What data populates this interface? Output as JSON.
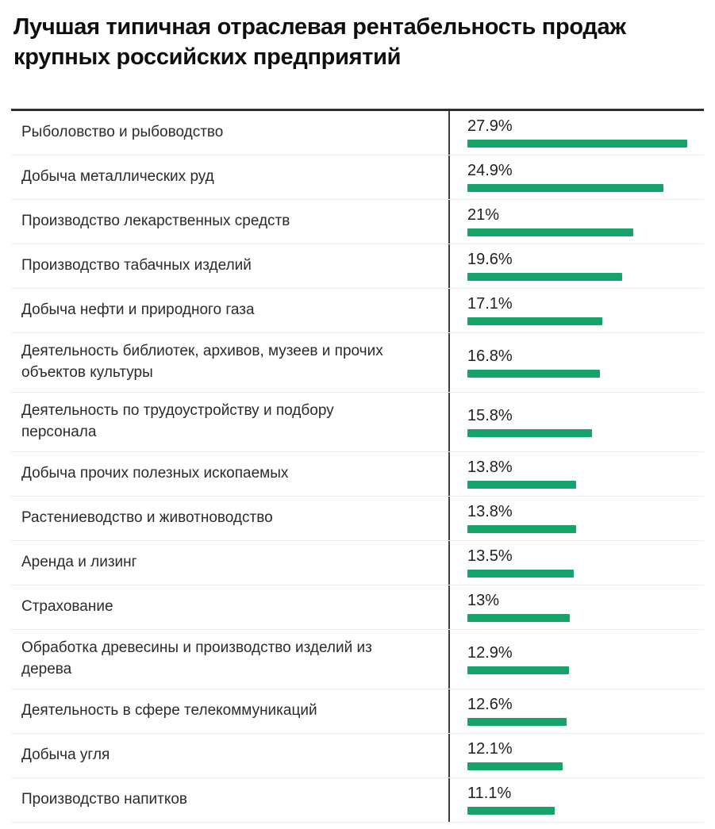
{
  "title": "Лучшая типичная отраслевая рентабельность продаж крупных российских предприятий",
  "colors": {
    "bar_green": "#15A369",
    "top_rule": "#2e2e2e",
    "column_divider": "#3d3d3d",
    "row_separator": "#ececec",
    "text_primary": "#0e0e0e",
    "text_secondary": "#2b2b2b"
  },
  "chart_data": {
    "type": "bar",
    "orientation": "horizontal",
    "title": "Лучшая типичная отраслевая рентабельность продаж крупных российских предприятий",
    "xlabel": "",
    "ylabel": "",
    "xlim": [
      0,
      30
    ],
    "grid": false,
    "legend": false,
    "bar_color": "#15A369",
    "categories": [
      "Рыболовство и рыбоводство",
      "Добыча металлических руд",
      "Производство лекарственных средств",
      "Производство табачных изделий",
      "Добыча нефти и природного газа",
      "Деятельность библиотек, архивов, музеев и прочих объектов культуры",
      "Деятельность по трудоустройству и подбору персонала",
      "Добыча прочих полезных ископаемых",
      "Растениеводство и животноводство",
      "Аренда и лизинг",
      "Страхование",
      "Обработка древесины и производство изделий из дерева",
      "Деятельность в сфере телекоммуникаций",
      "Добыча угля",
      "Производство напитков"
    ],
    "values": [
      27.9,
      24.9,
      21,
      19.6,
      17.1,
      16.8,
      15.8,
      13.8,
      13.8,
      13.5,
      13,
      12.9,
      12.6,
      12.1,
      11.1
    ],
    "value_labels": [
      "27.9%",
      "24.9%",
      "21%",
      "19.6%",
      "17.1%",
      "16.8%",
      "15.8%",
      "13.8%",
      "13.8%",
      "13.5%",
      "13%",
      "12.9%",
      "12.6%",
      "12.1%",
      "11.1%"
    ]
  }
}
